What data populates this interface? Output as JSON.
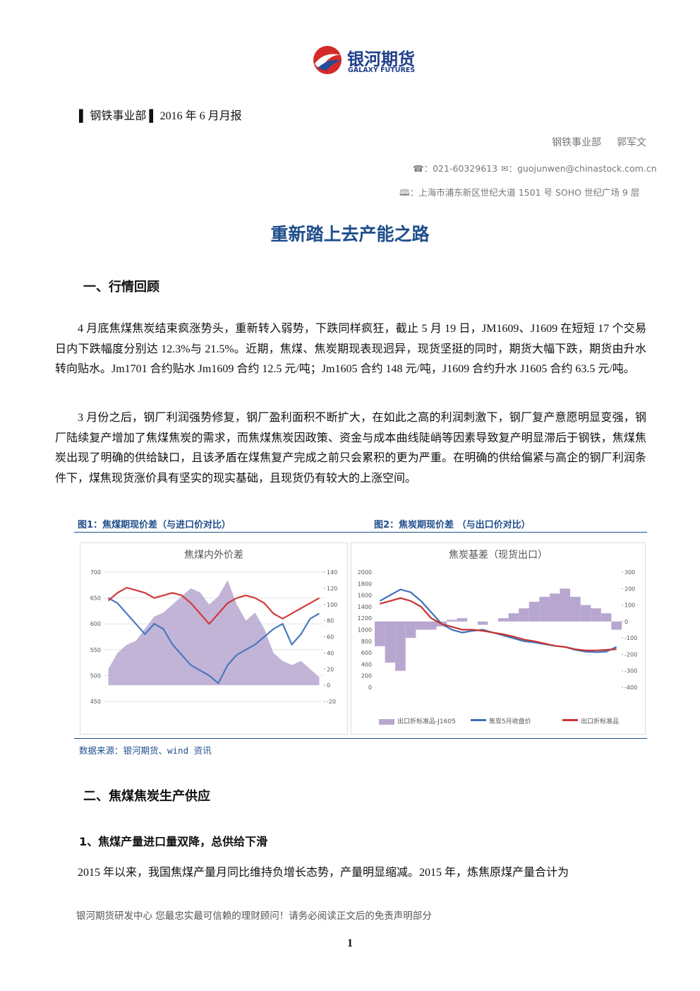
{
  "header": {
    "logo_cn": "银河期货",
    "logo_en": "GALAXY FUTURES",
    "report_line": "▌ 钢铁事业部 ▌ 2016 年 6 月月报"
  },
  "author": {
    "dept": "钢铁事业部",
    "name": "郭军文",
    "phone": "☎：021-60329613",
    "email": "✉：guojunwen@chinastock.com.cn",
    "address": "🕮：上海市浦东新区世纪大道 1501 号 SOHO 世纪广场 9 层"
  },
  "title": "重新踏上去产能之路",
  "section1": {
    "heading": "一、行情回顾",
    "paragraphs": [
      "4 月底焦煤焦炭结束疯涨势头，重新转入弱势，下跌同样疯狂，截止 5 月 19 日，JM1609、J1609 在短短 17 个交易日内下跌幅度分别达 12.3%与 21.5%。近期，焦煤、焦炭期现表现迥异，现货坚挺的同时，期货大幅下跌，期货由升水转向贴水。Jm1701 合约贴水 Jm1609 合约 12.5 元/吨；Jm1605 合约 148 元/吨，J1609 合约升水 J1605 合约 63.5 元/吨。",
      "3 月份之后，钢厂利润强势修复，钢厂盈利面积不断扩大，在如此之高的利润刺激下，钢厂复产意愿明显变强，钢厂陆续复产增加了焦煤焦炭的需求，而焦煤焦炭因政策、资金与成本曲线陡峭等因素导致复产明显滞后于钢铁，焦煤焦炭出现了明确的供给缺口，且该矛盾在煤焦复产完成之前只会累积的更为严重。在明确的供给偏紧与高企的钢厂利润条件下，煤焦现货涨价具有坚实的现实基础，且现货仍有较大的上涨空间。"
    ]
  },
  "figures": {
    "caption1": "图1：焦煤期现价差（与进口价对比）",
    "caption2": "图2：焦炭期现价差 （与出口价对比）",
    "source": "数据来源：银河期货、wind 资讯"
  },
  "chart_data": [
    {
      "type": "line",
      "title": "焦煤内外价差",
      "categories": [
        null,
        null,
        null,
        null,
        null,
        null,
        null,
        null,
        null,
        null,
        null,
        null,
        null,
        null,
        null,
        null,
        null,
        null,
        null,
        null,
        null,
        null,
        null,
        null
      ],
      "ylim": [
        450,
        700
      ],
      "yticks": [
        450,
        500,
        550,
        600,
        650,
        700
      ],
      "y2lim": [
        -20,
        140
      ],
      "y2ticks": [
        -20,
        0,
        20,
        40,
        60,
        80,
        100,
        120,
        140
      ],
      "grid": true,
      "series": [
        {
          "type": "area",
          "axis": "y2",
          "color": "#b7a7d0",
          "values": [
            20,
            40,
            50,
            55,
            70,
            85,
            90,
            100,
            110,
            120,
            115,
            100,
            110,
            130,
            100,
            80,
            90,
            70,
            40,
            30,
            25,
            30,
            20,
            10
          ]
        },
        {
          "type": "line",
          "color": "#4a78c0",
          "values": [
            650,
            640,
            620,
            600,
            580,
            600,
            590,
            560,
            540,
            520,
            510,
            500,
            485,
            520,
            540,
            550,
            560,
            575,
            590,
            600,
            560,
            580,
            610,
            620
          ]
        },
        {
          "type": "line",
          "color": "#d03a3a",
          "values": [
            645,
            660,
            670,
            665,
            660,
            650,
            655,
            660,
            655,
            640,
            620,
            600,
            620,
            640,
            650,
            655,
            650,
            640,
            620,
            610,
            620,
            630,
            640,
            650
          ]
        }
      ]
    },
    {
      "type": "line",
      "title": "焦炭基差（现货出口）",
      "categories": [
        null,
        null,
        null,
        null,
        null,
        null,
        null,
        null,
        null,
        null,
        null,
        null,
        null,
        null,
        null,
        null,
        null,
        null,
        null,
        null,
        null,
        null,
        null,
        null
      ],
      "ylim": [
        0,
        2000
      ],
      "yticks": [
        0,
        200,
        400,
        600,
        800,
        1000,
        1200,
        1400,
        1600,
        1800,
        2000
      ],
      "y2lim": [
        -400,
        300
      ],
      "y2ticks": [
        -400,
        -300,
        -200,
        -100,
        0,
        100,
        200,
        300
      ],
      "grid": false,
      "series": [
        {
          "type": "bar",
          "axis": "y2",
          "name": "出口折标准品-J1605",
          "color": "#b7a7d0",
          "values": [
            -150,
            -250,
            -300,
            -100,
            -50,
            -50,
            -30,
            10,
            20,
            0,
            -20,
            0,
            20,
            50,
            80,
            120,
            150,
            170,
            200,
            150,
            100,
            80,
            50,
            -50
          ]
        },
        {
          "type": "line",
          "name": "焦炭5月收盘价",
          "color": "#3f6fb8",
          "values": [
            1500,
            1600,
            1700,
            1650,
            1500,
            1300,
            1100,
            1000,
            950,
            980,
            1000,
            950,
            900,
            850,
            800,
            780,
            750,
            720,
            700,
            650,
            620,
            610,
            620,
            700
          ]
        },
        {
          "type": "line",
          "name": "出口折标准品",
          "color": "#c83232",
          "values": [
            1450,
            1500,
            1550,
            1500,
            1400,
            1200,
            1100,
            1050,
            1000,
            1000,
            980,
            950,
            920,
            880,
            830,
            800,
            760,
            720,
            700,
            660,
            640,
            640,
            650,
            660
          ]
        }
      ]
    }
  ],
  "section2": {
    "heading": "二、焦煤焦炭生产供应",
    "subheading": "1、焦煤产量进口量双降，总供给下滑",
    "paragraph": "2015 年以来，我国焦煤产量月同比维持负增长态势，产量明显缩减。2015 年，炼焦原煤产量合计为"
  },
  "footer": {
    "text": "银河期货研发中心 您最忠实最可信赖的理财顾问！请务必阅读正文后的免责声明部分",
    "page": "1"
  }
}
